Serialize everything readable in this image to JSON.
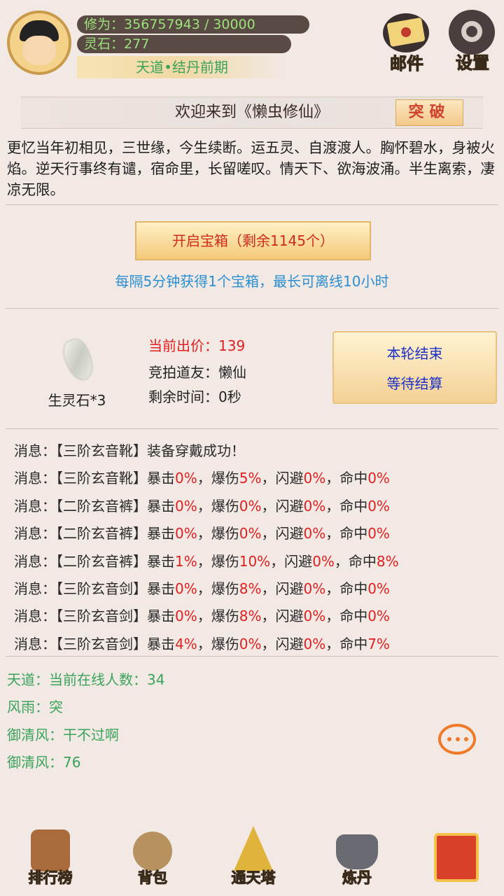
{
  "header": {
    "cultivation_label": "修为：",
    "cultivation": "356757943 / 30000",
    "spirit_stone_label": "灵石：",
    "spirit_stone": "277",
    "realm": "天道•结丹前期",
    "mail": "邮件",
    "settings": "设置"
  },
  "banner": {
    "title": "欢迎来到《懒虫修仙》",
    "breakthrough": "突破"
  },
  "intro": "更忆当年初相见，三世缘，今生续断。运五灵、自渡渡人。胸怀碧水，身被火焰。逆天行事终有谴，宿命里，长留嗟叹。情天下、欲海波涌。半生离索，凄凉无限。",
  "chest": {
    "button": "开启宝箱（剩余1145个）",
    "note": "每隔5分钟获得1个宝箱，最长可离线10小时"
  },
  "auction": {
    "item": "生灵石*3",
    "bid_label": "当前出价：",
    "bid": "139",
    "bidder_label": "竞拍道友：",
    "bidder": "懒仙",
    "time_label": "剩余时间：",
    "time": "0秒",
    "button_line1": "本轮结束",
    "button_line2": "等待结算"
  },
  "messages": [
    {
      "prefix": "消息：【三阶玄音靴】装备穿戴成功！",
      "stats": []
    },
    {
      "prefix": "消息：【三阶玄音靴】",
      "stats": [
        [
          "暴击",
          "0%"
        ],
        [
          "，爆伤",
          "5%"
        ],
        [
          "，闪避",
          "0%"
        ],
        [
          "，命中",
          "0%"
        ]
      ]
    },
    {
      "prefix": "消息：【二阶玄音裤】",
      "stats": [
        [
          "暴击",
          "0%"
        ],
        [
          "，爆伤",
          "0%"
        ],
        [
          "，闪避",
          "0%"
        ],
        [
          "，命中",
          "0%"
        ]
      ]
    },
    {
      "prefix": "消息：【二阶玄音裤】",
      "stats": [
        [
          "暴击",
          "0%"
        ],
        [
          "，爆伤",
          "0%"
        ],
        [
          "，闪避",
          "0%"
        ],
        [
          "，命中",
          "0%"
        ]
      ]
    },
    {
      "prefix": "消息：【二阶玄音裤】",
      "stats": [
        [
          "暴击",
          "1%"
        ],
        [
          "，爆伤",
          "10%"
        ],
        [
          "，闪避",
          "0%"
        ],
        [
          "，命中",
          "8%"
        ]
      ]
    },
    {
      "prefix": "消息：【三阶玄音剑】",
      "stats": [
        [
          "暴击",
          "0%"
        ],
        [
          "，爆伤",
          "8%"
        ],
        [
          "，闪避",
          "0%"
        ],
        [
          "，命中",
          "0%"
        ]
      ]
    },
    {
      "prefix": "消息：【三阶玄音剑】",
      "stats": [
        [
          "暴击",
          "0%"
        ],
        [
          "，爆伤",
          "8%"
        ],
        [
          "，闪避",
          "0%"
        ],
        [
          "，命中",
          "0%"
        ]
      ]
    },
    {
      "prefix": "消息：【三阶玄音剑】",
      "stats": [
        [
          "暴击",
          "4%"
        ],
        [
          "，爆伤",
          "0%"
        ],
        [
          "，闪避",
          "0%"
        ],
        [
          "，命中",
          "7%"
        ]
      ]
    }
  ],
  "chat": [
    {
      "name": "天道：",
      "text": "当前在线人数：34"
    },
    {
      "name": "风雨：",
      "text": "突"
    },
    {
      "name": "御清风：",
      "text": "干不过啊"
    },
    {
      "name": "御清风：",
      "text": "76"
    }
  ],
  "nav": [
    "排行榜",
    "背包",
    "通天塔",
    "炼丹"
  ]
}
